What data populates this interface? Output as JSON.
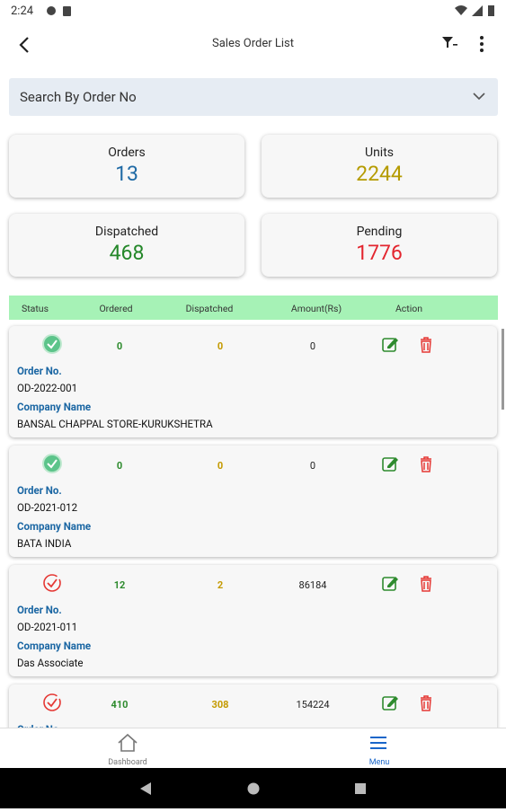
{
  "status_bar": {
    "time": "2:24"
  },
  "app_bar": {
    "title": "Sales Order List"
  },
  "search": {
    "placeholder": "Search By Order No"
  },
  "summary": [
    {
      "label": "Orders",
      "value": 13,
      "color": "#1f6aa5"
    },
    {
      "label": "Units",
      "value": 2244,
      "color": "#b59b00"
    },
    {
      "label": "Dispatched",
      "value": 468,
      "color": "#25882a"
    },
    {
      "label": "Pending",
      "value": 1776,
      "color": "#e3262f"
    }
  ],
  "table_header": [
    "Status",
    "Ordered",
    "Dispatched",
    "Amount(Rs)",
    "Action"
  ],
  "order_no_label": "Order No.",
  "company_label": "Company Name",
  "orders": [
    {
      "ordered": 0,
      "dispatched": 0,
      "amount": 0,
      "order_no": "OD-2022-001",
      "company": "BANSAL CHAPPAL STORE-KURUKSHETRA"
    },
    {
      "ordered": 0,
      "dispatched": 0,
      "amount": 0,
      "order_no": "OD-2021-012",
      "company": "BATA INDIA"
    },
    {
      "ordered": 12,
      "dispatched": 2,
      "amount": 86184,
      "order_no": "OD-2021-011",
      "company": "Das Associate"
    },
    {
      "ordered": 410,
      "dispatched": 308,
      "amount": 154224,
      "order_no": null,
      "company": null
    }
  ],
  "bottom_nav": [
    "Dashboard",
    "Menu"
  ]
}
